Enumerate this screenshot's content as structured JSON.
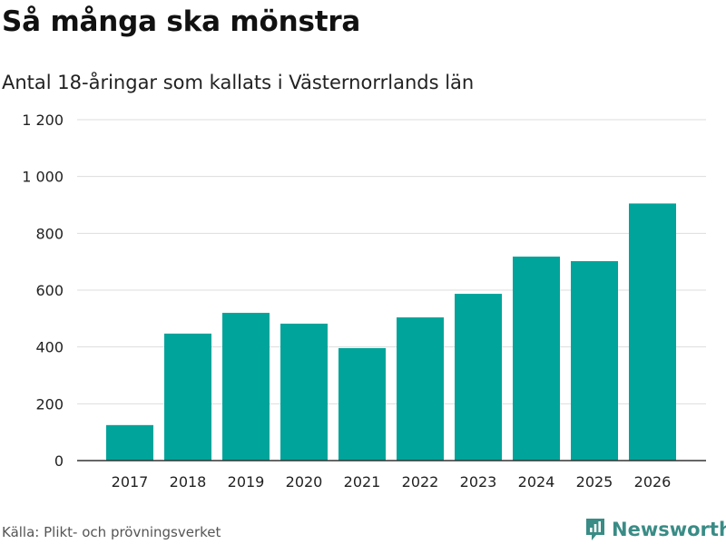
{
  "title": "Så många ska mönstra",
  "subtitle": "Antal 18-åringar som kallats i Västernorrlands län",
  "source": "Källa: Plikt- och prövningsverket",
  "brand": "Newsworthy",
  "colors": {
    "bar": "#00a49a",
    "grid": "#dddddd",
    "axis": "#333333",
    "text": "#222222",
    "brand": "#3a8c86"
  },
  "chart_data": {
    "type": "bar",
    "title": "Så många ska mönstra",
    "subtitle": "Antal 18-åringar som kallats i Västernorrlands län",
    "xlabel": "",
    "ylabel": "",
    "categories": [
      "2017",
      "2018",
      "2019",
      "2020",
      "2021",
      "2022",
      "2023",
      "2024",
      "2025",
      "2026"
    ],
    "values": [
      125,
      447,
      520,
      482,
      396,
      504,
      587,
      718,
      702,
      905
    ],
    "ylim": [
      0,
      1200
    ],
    "yticks": [
      0,
      200,
      400,
      600,
      800,
      1000,
      1200
    ],
    "ytick_labels": [
      "0",
      "200",
      "400",
      "600",
      "800",
      "1 000",
      "1 200"
    ],
    "grid": true,
    "legend": "none"
  }
}
